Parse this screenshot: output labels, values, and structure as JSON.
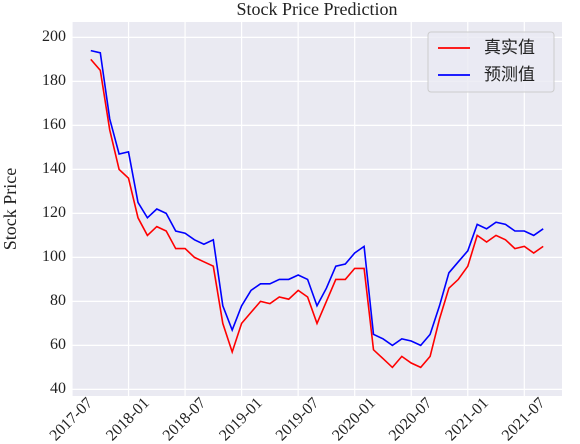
{
  "chart_data": {
    "type": "line",
    "title": "Stock Price Prediction",
    "ylabel": "Stock Price",
    "x": [
      "2017-09",
      "2017-10",
      "2017-11",
      "2017-12",
      "2018-01",
      "2018-02",
      "2018-03",
      "2018-04",
      "2018-05",
      "2018-06",
      "2018-07",
      "2018-08",
      "2018-09",
      "2018-10",
      "2018-11",
      "2018-12",
      "2019-01",
      "2019-02",
      "2019-03",
      "2019-04",
      "2019-05",
      "2019-06",
      "2019-07",
      "2019-08",
      "2019-09",
      "2019-10",
      "2019-11",
      "2019-12",
      "2020-01",
      "2020-02",
      "2020-03",
      "2020-04",
      "2020-05",
      "2020-06",
      "2020-07",
      "2020-08",
      "2020-09",
      "2020-10",
      "2020-11",
      "2020-12",
      "2021-01",
      "2021-02",
      "2021-03",
      "2021-04",
      "2021-05",
      "2021-06",
      "2021-07",
      "2021-08",
      "2021-09"
    ],
    "series": [
      {
        "name": "真实值",
        "color": "#ff0000",
        "values": [
          190,
          185,
          158,
          140,
          136,
          118,
          110,
          114,
          112,
          104,
          104,
          100,
          98,
          96,
          70,
          57,
          70,
          75,
          80,
          79,
          82,
          81,
          85,
          82,
          70,
          80,
          90,
          90,
          95,
          95,
          58,
          54,
          50,
          55,
          52,
          50,
          55,
          72,
          86,
          90,
          96,
          110,
          107,
          110,
          108,
          104,
          105,
          102,
          105
        ]
      },
      {
        "name": "预测值",
        "color": "#0000ff",
        "values": [
          194,
          193,
          163,
          147,
          148,
          125,
          118,
          122,
          120,
          112,
          111,
          108,
          106,
          108,
          78,
          67,
          78,
          85,
          88,
          88,
          90,
          90,
          92,
          90,
          78,
          86,
          96,
          97,
          102,
          105,
          65,
          63,
          60,
          63,
          62,
          60,
          65,
          78,
          93,
          98,
          103,
          115,
          113,
          116,
          115,
          112,
          112,
          110,
          113
        ]
      }
    ],
    "xlim": [
      "2017-07",
      "2021-11"
    ],
    "xticks": [
      "2017-07",
      "2018-01",
      "2018-07",
      "2019-01",
      "2019-07",
      "2020-01",
      "2020-07",
      "2021-01",
      "2021-07"
    ],
    "ylim": [
      37,
      207
    ],
    "yticks": [
      40,
      60,
      80,
      100,
      120,
      140,
      160,
      180,
      200
    ],
    "grid": true,
    "legend": "upper right"
  }
}
